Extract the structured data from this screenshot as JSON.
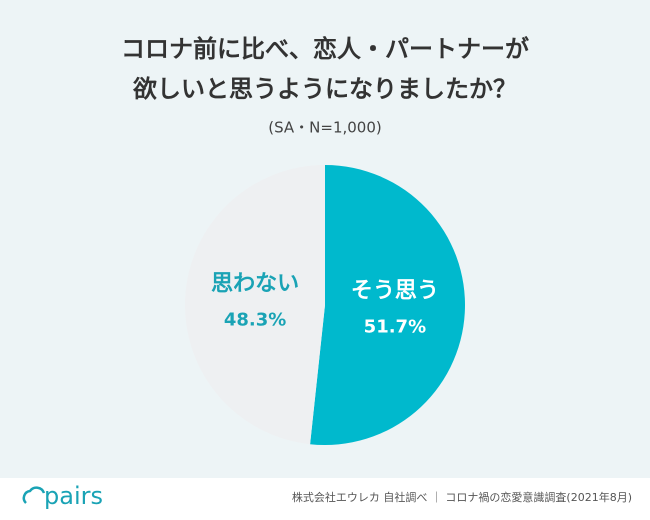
{
  "chart_data": {
    "type": "pie",
    "title": [
      "コロナ前に比べ、恋人・パートナーが",
      "欲しいと思うようになりましたか？"
    ],
    "subtitle": "(SA・N=1,000)",
    "categories": [
      "そう思う",
      "思わない"
    ],
    "values": [
      51.7,
      48.3
    ],
    "value_labels": [
      "51.7%",
      "48.3%"
    ],
    "colors": [
      "#00b9cd",
      "#eef0f2"
    ],
    "label_colors": [
      "#ffffff",
      "#1aa3b5"
    ]
  },
  "footer": {
    "logo": "pairs",
    "source": "株式会社エウレカ 自社調べ ｜ コロナ禍の恋愛意識調査(2021年8月)"
  }
}
